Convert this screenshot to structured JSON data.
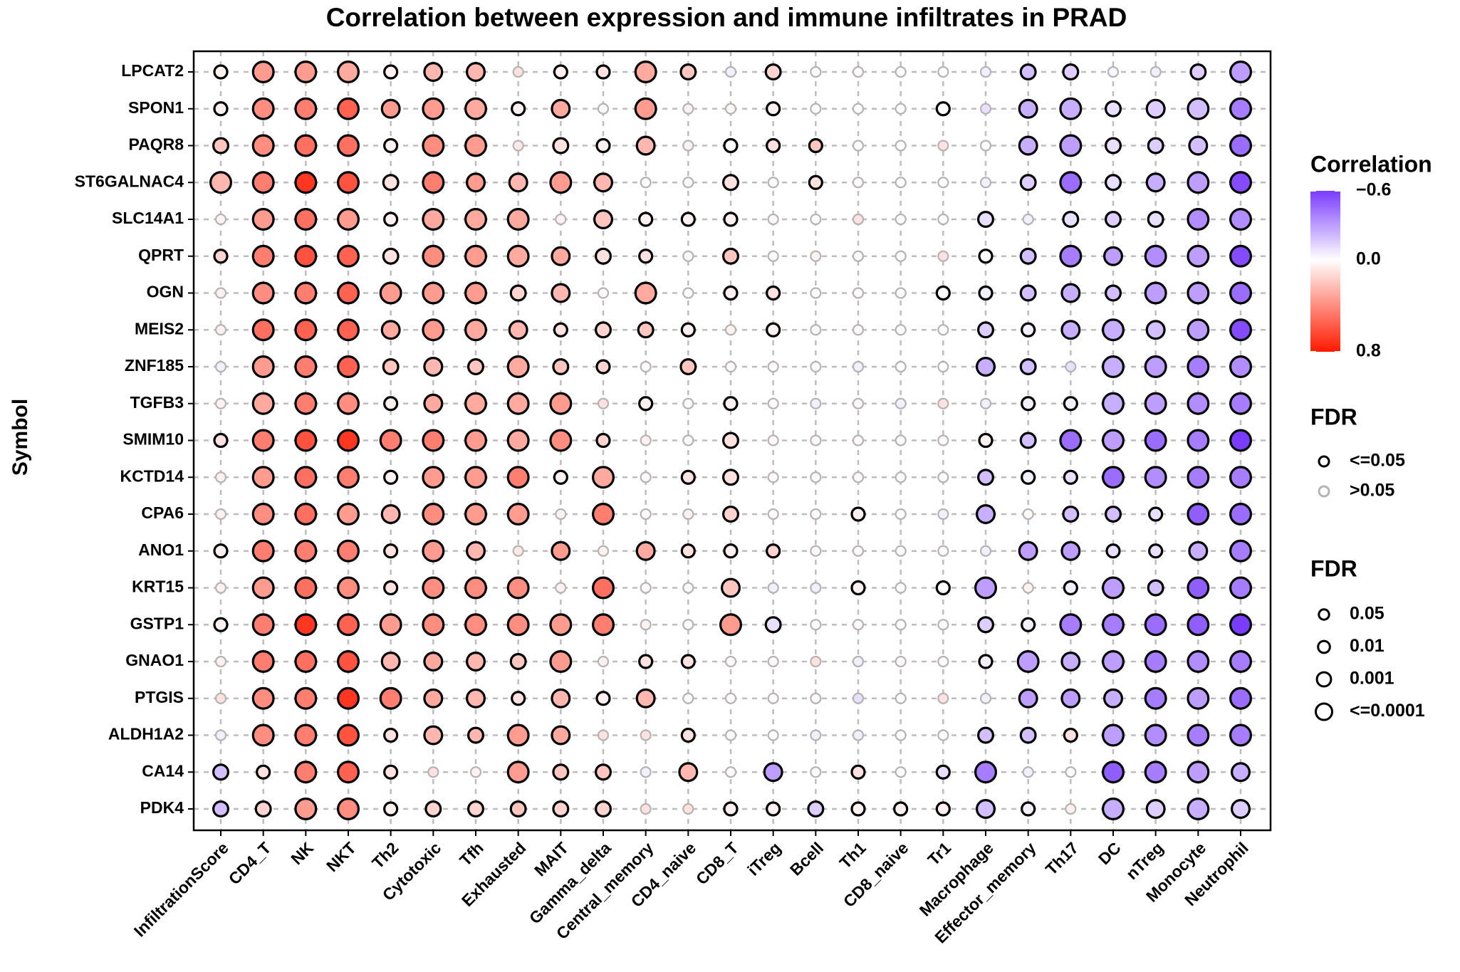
{
  "chart_data": {
    "type": "dotplot",
    "title": "Correlation between expression and immune infiltrates in PRAD",
    "y_label": "Symbol",
    "categories": [
      "InfiltrationScore",
      "CD4_T",
      "NK",
      "NKT",
      "Th2",
      "Cytotoxic",
      "Tfh",
      "Exhausted",
      "MAIT",
      "Gamma_delta",
      "Central_memory",
      "CD4_naive",
      "CD8_T",
      "iTreg",
      "Bcell",
      "Th1",
      "CD8_naive",
      "Tr1",
      "Macrophage",
      "Effector_memory",
      "Th17",
      "DC",
      "nTreg",
      "Monocyte",
      "Neutrophil"
    ],
    "rows": [
      "LPCAT2",
      "SPON1",
      "PAQR8",
      "ST6GALNAC4",
      "SLC14A1",
      "QPRT",
      "OGN",
      "MEIS2",
      "ZNF185",
      "TGFB3",
      "SMIM10",
      "KCTD14",
      "CPA6",
      "ANO1",
      "KRT15",
      "GSTP1",
      "GNAO1",
      "PTGIS",
      "ALDH1A2",
      "CA14",
      "PDK4"
    ],
    "values": [
      [
        0.05,
        0.35,
        0.35,
        0.3,
        0.05,
        0.25,
        0.25,
        0.1,
        0.05,
        0.1,
        0.3,
        0.2,
        -0.05,
        0.15,
        0.02,
        0.02,
        0.01,
        0.01,
        -0.05,
        -0.2,
        -0.15,
        -0.03,
        -0.05,
        -0.15,
        -0.3
      ],
      [
        0.05,
        0.4,
        0.45,
        0.55,
        0.35,
        0.35,
        0.3,
        0.05,
        0.3,
        0.02,
        0.35,
        0.05,
        0.03,
        0.05,
        0.01,
        0.01,
        0.01,
        0,
        -0.1,
        -0.25,
        -0.25,
        -0.1,
        -0.15,
        -0.2,
        -0.4
      ],
      [
        0.2,
        0.4,
        0.5,
        0.5,
        0.05,
        0.4,
        0.35,
        0.08,
        0.1,
        0.05,
        0.25,
        0.05,
        0,
        0.1,
        0.2,
        0.02,
        0.01,
        0.1,
        0.02,
        -0.25,
        -0.3,
        -0.1,
        -0.15,
        -0.2,
        -0.45
      ],
      [
        0.25,
        0.45,
        0.7,
        0.6,
        0.1,
        0.45,
        0.35,
        0.25,
        0.35,
        0.25,
        0.02,
        0.02,
        0.1,
        0.02,
        0.1,
        0.02,
        0.01,
        0.02,
        -0.05,
        -0.15,
        -0.45,
        -0.1,
        -0.25,
        -0.3,
        -0.55
      ],
      [
        0.05,
        0.35,
        0.5,
        0.35,
        0.05,
        0.3,
        0.3,
        0.3,
        0.05,
        0.2,
        0.05,
        0.05,
        0.05,
        0.02,
        0.02,
        0.1,
        0.01,
        0.02,
        -0.1,
        -0.05,
        -0.1,
        -0.15,
        -0.1,
        -0.35,
        -0.35
      ],
      [
        0.15,
        0.45,
        0.6,
        0.55,
        0.1,
        0.4,
        0.35,
        0.3,
        0.3,
        0.1,
        0.1,
        0.02,
        0.2,
        0.02,
        0.05,
        0.02,
        0.01,
        0.1,
        0,
        -0.2,
        -0.4,
        -0.3,
        -0.35,
        -0.3,
        -0.55
      ],
      [
        0.05,
        0.4,
        0.45,
        0.55,
        0.35,
        0.35,
        0.35,
        0.15,
        0.25,
        0.02,
        0.3,
        0.02,
        0.05,
        0.1,
        0.02,
        0.02,
        0.02,
        0,
        -0.05,
        -0.2,
        -0.25,
        -0.2,
        -0.3,
        -0.3,
        -0.45
      ],
      [
        0.05,
        0.5,
        0.55,
        0.55,
        0.3,
        0.35,
        0.3,
        0.25,
        0.1,
        0.15,
        0.2,
        0.05,
        0.05,
        0.05,
        0.02,
        0.02,
        0.01,
        0.02,
        -0.15,
        -0.05,
        -0.25,
        -0.25,
        -0.2,
        -0.3,
        -0.55
      ],
      [
        -0.05,
        0.35,
        0.45,
        0.55,
        0.2,
        0.25,
        0.2,
        0.3,
        0.2,
        0.15,
        0.02,
        0.2,
        0.02,
        0.02,
        0.02,
        -0.05,
        0.01,
        0.02,
        -0.25,
        -0.2,
        -0.1,
        -0.25,
        -0.3,
        -0.4,
        -0.35
      ],
      [
        0.05,
        0.3,
        0.45,
        0.4,
        0.05,
        0.3,
        0.3,
        0.3,
        0.35,
        0.1,
        0.05,
        0.02,
        0.05,
        0.02,
        -0.05,
        0.02,
        -0.05,
        0.1,
        -0.05,
        -0.05,
        -0.05,
        -0.25,
        -0.3,
        -0.35,
        -0.4
      ],
      [
        0.1,
        0.45,
        0.6,
        0.7,
        0.45,
        0.45,
        0.35,
        0.3,
        0.4,
        0.15,
        0.05,
        0.02,
        0.1,
        0.02,
        0.02,
        0.02,
        0.02,
        0.02,
        0.05,
        -0.2,
        -0.45,
        -0.3,
        -0.45,
        -0.4,
        -0.6
      ],
      [
        0.05,
        0.35,
        0.5,
        0.45,
        0.05,
        0.35,
        0.35,
        0.45,
        0.05,
        0.3,
        0.02,
        0.1,
        0.1,
        0.02,
        0.02,
        0.02,
        0.02,
        0.02,
        -0.2,
        -0.05,
        -0.1,
        -0.45,
        -0.35,
        -0.4,
        -0.4
      ],
      [
        0.05,
        0.4,
        0.5,
        0.35,
        0.25,
        0.4,
        0.35,
        0.35,
        0.05,
        0.45,
        0.02,
        0.05,
        0.15,
        0.02,
        0.02,
        0.05,
        0.01,
        -0.05,
        -0.25,
        0.02,
        -0.2,
        -0.2,
        -0.1,
        -0.5,
        -0.45
      ],
      [
        0.05,
        0.45,
        0.45,
        0.45,
        0.1,
        0.35,
        0.25,
        0.08,
        0.35,
        0.05,
        0.3,
        0.1,
        0.05,
        0.15,
        0.02,
        0.02,
        0.02,
        0.02,
        -0.05,
        -0.3,
        -0.3,
        -0.1,
        -0.1,
        -0.25,
        -0.4
      ],
      [
        0.05,
        0.35,
        0.5,
        0.4,
        0.1,
        0.4,
        0.4,
        0.4,
        0.05,
        0.5,
        0.02,
        0.02,
        0.2,
        -0.05,
        -0.05,
        0.05,
        0.01,
        0,
        -0.3,
        0.05,
        -0.05,
        -0.3,
        -0.2,
        -0.5,
        -0.4
      ],
      [
        0.05,
        0.45,
        0.7,
        0.55,
        0.35,
        0.4,
        0.4,
        0.4,
        0.35,
        0.45,
        0.05,
        0.02,
        0.35,
        -0.1,
        0.02,
        0.02,
        0.01,
        0.02,
        -0.15,
        -0.05,
        -0.4,
        -0.4,
        -0.45,
        -0.5,
        -0.6
      ],
      [
        0.05,
        0.45,
        0.5,
        0.6,
        0.25,
        0.3,
        0.25,
        0.2,
        0.35,
        0.05,
        0.1,
        0.1,
        0.02,
        0.02,
        0.1,
        -0.05,
        0.02,
        0.02,
        -0.05,
        -0.3,
        -0.25,
        -0.3,
        -0.4,
        -0.35,
        -0.4
      ],
      [
        0.1,
        0.4,
        0.45,
        0.7,
        0.45,
        0.3,
        0.25,
        0.1,
        0.25,
        0.05,
        0.25,
        0.02,
        0.02,
        0.02,
        0.02,
        -0.1,
        0.01,
        0.1,
        -0.05,
        -0.3,
        -0.3,
        -0.25,
        -0.4,
        -0.3,
        -0.45
      ],
      [
        -0.05,
        0.4,
        0.45,
        0.6,
        0.1,
        0.25,
        0.25,
        0.35,
        0.3,
        0.1,
        0.1,
        0.1,
        0.02,
        0.02,
        -0.05,
        -0.05,
        0.01,
        0.02,
        -0.2,
        -0.2,
        0.1,
        -0.3,
        -0.35,
        -0.4,
        -0.4
      ],
      [
        -0.2,
        0.1,
        0.45,
        0.55,
        0.1,
        0.1,
        0.05,
        0.35,
        0.2,
        0.2,
        -0.05,
        0.25,
        0.02,
        -0.3,
        0.02,
        0.1,
        0.02,
        -0.1,
        -0.4,
        -0.05,
        0.02,
        -0.5,
        -0.4,
        -0.3,
        -0.25
      ],
      [
        -0.2,
        0.15,
        0.35,
        0.4,
        0.05,
        0.15,
        0.15,
        0.2,
        0.15,
        0.15,
        0.1,
        0.1,
        0.05,
        0.05,
        -0.15,
        0.05,
        0.05,
        0.05,
        -0.2,
        -0.05,
        0.05,
        -0.25,
        -0.15,
        -0.25,
        -0.15
      ]
    ],
    "fdr": [
      [
        0.05,
        0.0001,
        0.0001,
        0.0001,
        0.05,
        0.001,
        0.001,
        0.5,
        0.05,
        0.05,
        0.0001,
        0.01,
        0.5,
        0.01,
        0.5,
        0.5,
        0.5,
        0.5,
        0.5,
        0.01,
        0.01,
        0.5,
        0.5,
        0.01,
        0.0001
      ],
      [
        0.05,
        0.0001,
        0.0001,
        0.0001,
        0.001,
        0.0001,
        0.0001,
        0.05,
        0.001,
        0.5,
        0.0001,
        0.5,
        0.5,
        0.05,
        0.5,
        0.5,
        0.5,
        0.05,
        0.5,
        0.001,
        0.0001,
        0.01,
        0.001,
        0.0001,
        0.0001
      ],
      [
        0.01,
        0.0001,
        0.0001,
        0.0001,
        0.05,
        0.0001,
        0.0001,
        0.5,
        0.01,
        0.05,
        0.001,
        0.5,
        0.05,
        0.05,
        0.05,
        0.5,
        0.5,
        0.5,
        0.5,
        0.001,
        0.0001,
        0.01,
        0.01,
        0.001,
        0.0001
      ],
      [
        0.0001,
        0.0001,
        0.0001,
        0.0001,
        0.01,
        0.0001,
        0.001,
        0.001,
        0.0001,
        0.001,
        0.5,
        0.5,
        0.01,
        0.5,
        0.05,
        0.5,
        0.5,
        0.5,
        0.5,
        0.01,
        0.0001,
        0.01,
        0.001,
        0.0001,
        0.0001
      ],
      [
        0.5,
        0.0001,
        0.0001,
        0.0001,
        0.05,
        0.0001,
        0.0001,
        0.0001,
        0.5,
        0.001,
        0.05,
        0.05,
        0.05,
        0.5,
        0.5,
        0.5,
        0.5,
        0.5,
        0.01,
        0.5,
        0.01,
        0.01,
        0.01,
        0.0001,
        0.0001
      ],
      [
        0.05,
        0.0001,
        0.0001,
        0.0001,
        0.01,
        0.0001,
        0.0001,
        0.0001,
        0.001,
        0.01,
        0.05,
        0.5,
        0.01,
        0.5,
        0.5,
        0.5,
        0.5,
        0.5,
        0.05,
        0.01,
        0.0001,
        0.001,
        0.0001,
        0.0001,
        0.0001
      ],
      [
        0.5,
        0.0001,
        0.0001,
        0.0001,
        0.0001,
        0.0001,
        0.0001,
        0.01,
        0.001,
        0.5,
        0.0001,
        0.5,
        0.05,
        0.05,
        0.5,
        0.5,
        0.5,
        0.05,
        0.05,
        0.01,
        0.001,
        0.01,
        0.0001,
        0.0001,
        0.0001
      ],
      [
        0.5,
        0.0001,
        0.0001,
        0.0001,
        0.001,
        0.0001,
        0.0001,
        0.001,
        0.05,
        0.01,
        0.01,
        0.05,
        0.5,
        0.05,
        0.5,
        0.5,
        0.5,
        0.5,
        0.01,
        0.05,
        0.001,
        0.0001,
        0.001,
        0.0001,
        0.0001
      ],
      [
        0.5,
        0.0001,
        0.0001,
        0.0001,
        0.01,
        0.001,
        0.01,
        0.0001,
        0.01,
        0.05,
        0.5,
        0.01,
        0.5,
        0.5,
        0.5,
        0.5,
        0.5,
        0.5,
        0.001,
        0.01,
        0.5,
        0.0001,
        0.0001,
        0.0001,
        0.0001
      ],
      [
        0.5,
        0.0001,
        0.0001,
        0.0001,
        0.05,
        0.001,
        0.0001,
        0.0001,
        0.0001,
        0.5,
        0.05,
        0.5,
        0.05,
        0.5,
        0.5,
        0.5,
        0.5,
        0.5,
        0.5,
        0.05,
        0.05,
        0.0001,
        0.0001,
        0.0001,
        0.0001
      ],
      [
        0.05,
        0.0001,
        0.0001,
        0.0001,
        0.0001,
        0.0001,
        0.0001,
        0.0001,
        0.0001,
        0.05,
        0.5,
        0.5,
        0.01,
        0.5,
        0.5,
        0.5,
        0.5,
        0.5,
        0.05,
        0.01,
        0.0001,
        0.0001,
        0.0001,
        0.0001,
        0.0001
      ],
      [
        0.5,
        0.0001,
        0.0001,
        0.0001,
        0.05,
        0.0001,
        0.0001,
        0.0001,
        0.05,
        0.0001,
        0.5,
        0.05,
        0.01,
        0.5,
        0.5,
        0.5,
        0.5,
        0.5,
        0.01,
        0.05,
        0.05,
        0.0001,
        0.0001,
        0.0001,
        0.0001
      ],
      [
        0.5,
        0.0001,
        0.0001,
        0.0001,
        0.001,
        0.0001,
        0.0001,
        0.0001,
        0.5,
        0.0001,
        0.5,
        0.5,
        0.01,
        0.5,
        0.5,
        0.05,
        0.5,
        0.5,
        0.001,
        0.5,
        0.01,
        0.01,
        0.05,
        0.0001,
        0.0001
      ],
      [
        0.05,
        0.0001,
        0.0001,
        0.0001,
        0.05,
        0.0001,
        0.001,
        0.5,
        0.001,
        0.5,
        0.001,
        0.05,
        0.05,
        0.05,
        0.5,
        0.5,
        0.5,
        0.5,
        0.5,
        0.001,
        0.001,
        0.05,
        0.05,
        0.001,
        0.0001
      ],
      [
        0.5,
        0.0001,
        0.0001,
        0.0001,
        0.05,
        0.0001,
        0.0001,
        0.0001,
        0.5,
        0.0001,
        0.5,
        0.5,
        0.001,
        0.5,
        0.5,
        0.05,
        0.5,
        0.05,
        0.0001,
        0.5,
        0.05,
        0.0001,
        0.01,
        0.0001,
        0.0001
      ],
      [
        0.05,
        0.0001,
        0.0001,
        0.0001,
        0.0001,
        0.0001,
        0.0001,
        0.0001,
        0.0001,
        0.0001,
        0.5,
        0.5,
        0.0001,
        0.01,
        0.5,
        0.5,
        0.5,
        0.5,
        0.01,
        0.05,
        0.0001,
        0.0001,
        0.0001,
        0.0001,
        0.0001
      ],
      [
        0.5,
        0.0001,
        0.0001,
        0.0001,
        0.001,
        0.001,
        0.001,
        0.01,
        0.0001,
        0.5,
        0.05,
        0.05,
        0.5,
        0.5,
        0.5,
        0.5,
        0.5,
        0.5,
        0.05,
        0.0001,
        0.001,
        0.0001,
        0.0001,
        0.0001,
        0.0001
      ],
      [
        0.5,
        0.0001,
        0.0001,
        0.0001,
        0.0001,
        0.001,
        0.001,
        0.05,
        0.001,
        0.05,
        0.001,
        0.5,
        0.5,
        0.5,
        0.5,
        0.5,
        0.5,
        0.5,
        0.5,
        0.001,
        0.001,
        0.001,
        0.0001,
        0.0001,
        0.0001
      ],
      [
        0.5,
        0.0001,
        0.0001,
        0.0001,
        0.05,
        0.001,
        0.01,
        0.0001,
        0.001,
        0.5,
        0.5,
        0.05,
        0.5,
        0.5,
        0.5,
        0.5,
        0.5,
        0.5,
        0.01,
        0.01,
        0.05,
        0.0001,
        0.0001,
        0.0001,
        0.0001
      ],
      [
        0.01,
        0.05,
        0.0001,
        0.0001,
        0.05,
        0.5,
        0.5,
        0.0001,
        0.01,
        0.01,
        0.5,
        0.001,
        0.5,
        0.001,
        0.5,
        0.05,
        0.5,
        0.05,
        0.0001,
        0.5,
        0.5,
        0.0001,
        0.0001,
        0.0001,
        0.001
      ],
      [
        0.01,
        0.01,
        0.0001,
        0.0001,
        0.05,
        0.01,
        0.01,
        0.01,
        0.01,
        0.01,
        0.5,
        0.5,
        0.05,
        0.05,
        0.01,
        0.05,
        0.05,
        0.05,
        0.001,
        0.05,
        0.5,
        0.0001,
        0.001,
        0.0001,
        0.001
      ]
    ],
    "grid": true,
    "color_legend": {
      "title": "Correlation",
      "lim": [
        -0.6,
        0.8
      ],
      "ticks": [
        {
          "value": -0.6,
          "label": "−0.6"
        },
        {
          "value": 0,
          "label": "0.0"
        },
        {
          "value": 0.8,
          "label": "0.8"
        }
      ],
      "colors": {
        "low": "#7a3cff",
        "mid": "#ffffff",
        "high": "#ff1a00"
      }
    },
    "fdr_border_legend": {
      "title": "FDR",
      "items": [
        {
          "label": "<=0.05",
          "color": "#000000"
        },
        {
          "label": ">0.05",
          "color": "#b4b4b4"
        }
      ]
    },
    "fdr_size_legend": {
      "title": "FDR",
      "items": [
        {
          "value": 0.05,
          "label": "0.05"
        },
        {
          "value": 0.01,
          "label": "0.01"
        },
        {
          "value": 0.001,
          "label": "0.001"
        },
        {
          "value": 0.0001,
          "label": "<=0.0001"
        }
      ]
    }
  }
}
